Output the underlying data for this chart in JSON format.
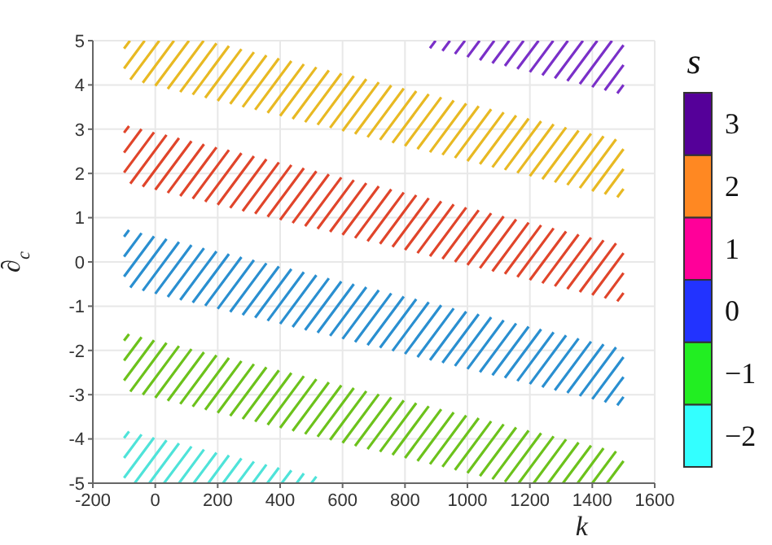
{
  "chart_data": {
    "type": "line",
    "xlabel": "k",
    "ylabel": "∂$_{c}$",
    "clabel": "s",
    "clim": [
      -2.5,
      3.5
    ],
    "cticks": [
      {
        "value": -2,
        "label": "−2"
      },
      {
        "value": -1,
        "label": "−1"
      },
      0,
      1,
      2,
      3
    ],
    "colors": [
      "#33ffff",
      "#22ee22",
      "#2233ff",
      "#ff0099",
      "#ff8822",
      "#550099"
    ],
    "xlim": [
      -200,
      1600
    ],
    "xticks": [
      -200,
      0,
      200,
      400,
      600,
      800,
      1000,
      1200,
      1400,
      1600
    ],
    "ylim": [
      -5,
      5
    ],
    "yticks": [
      -5,
      -4,
      -3,
      -2,
      -1,
      0,
      1,
      2,
      3,
      4,
      5
    ],
    "grid": true,
    "legend": false,
    "marker": "none",
    "line_style": "solid",
    "x": [
      -100,
      -84,
      null,
      -100,
      -44,
      null,
      -100,
      -4,
      null,
      -80,
      36,
      null,
      -40,
      76,
      null,
      0,
      116,
      null,
      40,
      156,
      null,
      80,
      196,
      null,
      120,
      236,
      null,
      160,
      276,
      null,
      200,
      316,
      null,
      240,
      356,
      null,
      280,
      396,
      null,
      320,
      436,
      null,
      360,
      476,
      null,
      400,
      516,
      null,
      440,
      556,
      null,
      480,
      596,
      null,
      520,
      636,
      null,
      560,
      676,
      null,
      600,
      716,
      null,
      640,
      756,
      null,
      680,
      796,
      null,
      720,
      836,
      null,
      760,
      876,
      null,
      800,
      916,
      null,
      840,
      956,
      null,
      880,
      996,
      null,
      920,
      1036,
      null,
      960,
      1076,
      null,
      1000,
      1116,
      null,
      1040,
      1156,
      null,
      1080,
      1196,
      null,
      1120,
      1236,
      null,
      1160,
      1276,
      null,
      1200,
      1316,
      null,
      1240,
      1356,
      null,
      1280,
      1396,
      null,
      1320,
      1436,
      null,
      1360,
      1476,
      null,
      1400,
      1500,
      null,
      1440,
      1500,
      null,
      1480,
      1500
    ],
    "series": [
      {
        "color": "#7a30c8",
        "x": [
          880,
          898,
          null,
          920,
          944,
          null,
          960,
          992,
          null,
          1000,
          1039,
          null,
          1040,
          1086,
          null,
          1080,
          1134,
          null,
          1120,
          1180,
          null,
          1160,
          1228,
          null,
          1200,
          1275,
          null,
          1240,
          1322,
          null,
          1280,
          1370,
          null,
          1320,
          1416,
          null,
          1360,
          1463,
          null,
          1400,
          1500,
          null,
          1440,
          1500,
          null,
          1480,
          1500
        ],
        "values": [
          4.83,
          5,
          null,
          4.77,
          5,
          null,
          4.7,
          5,
          null,
          4.63,
          5,
          null,
          4.56,
          5,
          null,
          4.49,
          5,
          null,
          4.43,
          5,
          null,
          4.36,
          5,
          null,
          4.29,
          5,
          null,
          4.22,
          5,
          null,
          4.15,
          5,
          null,
          4.09,
          5,
          null,
          4.02,
          5,
          null,
          3.95,
          4.9,
          null,
          3.88,
          4.45,
          null,
          3.81,
          4.0
        ]
      },
      {
        "color": "#e8b923",
        "x": [
          -100,
          -81,
          null,
          -100,
          -34,
          null,
          -80,
          13,
          null,
          -40,
          60,
          null,
          0,
          108,
          null,
          40,
          155,
          null,
          80,
          196,
          null,
          120,
          236,
          null,
          160,
          276,
          null,
          200,
          316,
          null,
          240,
          356,
          null,
          280,
          396,
          null,
          320,
          436,
          null,
          360,
          476,
          null,
          400,
          516,
          null,
          440,
          556,
          null,
          480,
          596,
          null,
          520,
          636,
          null,
          560,
          676,
          null,
          600,
          716,
          null,
          640,
          756,
          null,
          680,
          796,
          null,
          720,
          836,
          null,
          760,
          876,
          null,
          800,
          916,
          null,
          840,
          956,
          null,
          880,
          996,
          null,
          920,
          1036,
          null,
          960,
          1076,
          null,
          1000,
          1116,
          null,
          1040,
          1156,
          null,
          1080,
          1196,
          null,
          1120,
          1236,
          null,
          1160,
          1276,
          null,
          1200,
          1316,
          null,
          1240,
          1356,
          null,
          1280,
          1396,
          null,
          1320,
          1436,
          null,
          1360,
          1476,
          null,
          1400,
          1500,
          null,
          1440,
          1500,
          null,
          1480,
          1500
        ],
        "values": [
          4.82,
          5,
          null,
          4.37,
          5,
          null,
          4.12,
          5,
          null,
          4.05,
          5,
          null,
          3.98,
          5,
          null,
          3.91,
          5,
          null,
          3.84,
          4.94,
          null,
          3.78,
          4.88,
          null,
          3.71,
          4.81,
          null,
          3.64,
          4.74,
          null,
          3.57,
          4.67,
          null,
          3.5,
          4.6,
          null,
          3.44,
          4.54,
          null,
          3.37,
          4.47,
          null,
          3.3,
          4.4,
          null,
          3.23,
          4.33,
          null,
          3.16,
          4.26,
          null,
          3.1,
          4.2,
          null,
          3.03,
          4.13,
          null,
          2.96,
          4.06,
          null,
          2.89,
          3.99,
          null,
          2.82,
          3.92,
          null,
          2.76,
          3.86,
          null,
          2.69,
          3.79,
          null,
          2.62,
          3.72,
          null,
          2.55,
          3.65,
          null,
          2.48,
          3.58,
          null,
          2.42,
          3.52,
          null,
          2.35,
          3.45,
          null,
          2.28,
          3.38,
          null,
          2.21,
          3.31,
          null,
          2.14,
          3.24,
          null,
          2.08,
          3.18,
          null,
          2.01,
          3.11,
          null,
          1.94,
          3.04,
          null,
          1.87,
          2.97,
          null,
          1.8,
          2.9,
          null,
          1.74,
          2.84,
          null,
          1.67,
          2.77,
          null,
          1.6,
          2.55,
          null,
          1.53,
          2.1,
          null,
          1.46,
          1.65
        ]
      },
      {
        "color": "#e0452b",
        "values": [
          2.92,
          3.07,
          null,
          2.47,
          3.0,
          null,
          2.02,
          2.93,
          null,
          1.77,
          2.87,
          null,
          1.7,
          2.8,
          null,
          1.63,
          2.73,
          null,
          1.56,
          2.66,
          null,
          1.49,
          2.59,
          null,
          1.43,
          2.53,
          null,
          1.36,
          2.46,
          null,
          1.29,
          2.39,
          null,
          1.22,
          2.32,
          null,
          1.15,
          2.25,
          null,
          1.09,
          2.19,
          null,
          1.02,
          2.12,
          null,
          0.95,
          2.05,
          null,
          0.88,
          1.98,
          null,
          0.81,
          1.91,
          null,
          0.75,
          1.85,
          null,
          0.68,
          1.78,
          null,
          0.61,
          1.71,
          null,
          0.54,
          1.64,
          null,
          0.47,
          1.57,
          null,
          0.41,
          1.51,
          null,
          0.34,
          1.44,
          null,
          0.27,
          1.37,
          null,
          0.2,
          1.3,
          null,
          0.13,
          1.23,
          null,
          0.07,
          1.17,
          null,
          0.0,
          1.1,
          null,
          -0.07,
          1.03,
          null,
          -0.14,
          0.96,
          null,
          -0.21,
          0.89,
          null,
          -0.27,
          0.83,
          null,
          -0.34,
          0.76,
          null,
          -0.41,
          0.69,
          null,
          -0.48,
          0.62,
          null,
          -0.55,
          0.55,
          null,
          -0.61,
          0.49,
          null,
          -0.68,
          0.42,
          null,
          -0.75,
          0.2,
          null,
          -0.82,
          -0.25,
          null,
          -0.89,
          -0.7
        ]
      },
      {
        "color": "#2a8fd0",
        "values": [
          0.57,
          0.72,
          null,
          0.12,
          0.65,
          null,
          -0.33,
          0.58,
          null,
          -0.58,
          0.52,
          null,
          -0.65,
          0.45,
          null,
          -0.72,
          0.38,
          null,
          -0.79,
          0.31,
          null,
          -0.86,
          0.24,
          null,
          -0.92,
          0.18,
          null,
          -0.99,
          0.11,
          null,
          -1.06,
          0.04,
          null,
          -1.13,
          -0.03,
          null,
          -1.2,
          -0.1,
          null,
          -1.26,
          -0.16,
          null,
          -1.33,
          -0.23,
          null,
          -1.4,
          -0.3,
          null,
          -1.47,
          -0.37,
          null,
          -1.54,
          -0.44,
          null,
          -1.6,
          -0.5,
          null,
          -1.67,
          -0.57,
          null,
          -1.74,
          -0.64,
          null,
          -1.81,
          -0.71,
          null,
          -1.88,
          -0.78,
          null,
          -1.94,
          -0.84,
          null,
          -2.01,
          -0.91,
          null,
          -2.08,
          -0.98,
          null,
          -2.15,
          -1.05,
          null,
          -2.22,
          -1.12,
          null,
          -2.28,
          -1.18,
          null,
          -2.35,
          -1.25,
          null,
          -2.42,
          -1.32,
          null,
          -2.49,
          -1.39,
          null,
          -2.56,
          -1.46,
          null,
          -2.62,
          -1.52,
          null,
          -2.69,
          -1.59,
          null,
          -2.76,
          -1.66,
          null,
          -2.83,
          -1.73,
          null,
          -2.9,
          -1.8,
          null,
          -2.96,
          -1.86,
          null,
          -3.03,
          -1.93,
          null,
          -3.1,
          -2.15,
          null,
          -3.17,
          -2.6,
          null,
          -3.24,
          -3.05
        ]
      },
      {
        "color": "#6cc21c",
        "x": [
          -100,
          -84,
          null,
          -100,
          -44,
          null,
          -100,
          -4,
          null,
          -80,
          36,
          null,
          -40,
          76,
          null,
          0,
          116,
          null,
          40,
          156,
          null,
          80,
          196,
          null,
          120,
          236,
          null,
          160,
          276,
          null,
          200,
          316,
          null,
          240,
          356,
          null,
          280,
          396,
          null,
          320,
          436,
          null,
          360,
          476,
          null,
          400,
          516,
          null,
          440,
          556,
          null,
          480,
          596,
          null,
          520,
          636,
          null,
          560,
          676,
          null,
          600,
          716,
          null,
          640,
          756,
          null,
          680,
          796,
          null,
          720,
          836,
          null,
          760,
          876,
          null,
          800,
          916,
          null,
          840,
          956,
          null,
          880,
          996,
          null,
          920,
          1036,
          null,
          960,
          1076,
          null,
          1000,
          1116,
          null,
          1040,
          1156,
          null,
          1080,
          1196,
          null,
          1120,
          1236,
          null,
          1164,
          1276,
          null,
          1212,
          1316,
          null,
          1259,
          1356,
          null,
          1306,
          1396,
          null,
          1353,
          1436,
          null,
          1400,
          1476,
          null,
          1447,
          1500
        ],
        "values": [
          -1.78,
          -1.63,
          null,
          -2.23,
          -1.7,
          null,
          -2.68,
          -1.77,
          null,
          -2.93,
          -1.83,
          null,
          -3.0,
          -1.9,
          null,
          -3.07,
          -1.97,
          null,
          -3.14,
          -2.04,
          null,
          -3.21,
          -2.11,
          null,
          -3.27,
          -2.17,
          null,
          -3.34,
          -2.24,
          null,
          -3.41,
          -2.31,
          null,
          -3.48,
          -2.38,
          null,
          -3.55,
          -2.45,
          null,
          -3.61,
          -2.51,
          null,
          -3.68,
          -2.58,
          null,
          -3.75,
          -2.65,
          null,
          -3.82,
          -2.72,
          null,
          -3.89,
          -2.79,
          null,
          -3.95,
          -2.85,
          null,
          -4.02,
          -2.92,
          null,
          -4.09,
          -2.99,
          null,
          -4.16,
          -3.06,
          null,
          -4.23,
          -3.13,
          null,
          -4.29,
          -3.19,
          null,
          -4.36,
          -3.26,
          null,
          -4.43,
          -3.33,
          null,
          -4.5,
          -3.4,
          null,
          -4.57,
          -3.47,
          null,
          -4.63,
          -3.53,
          null,
          -4.7,
          -3.6,
          null,
          -4.77,
          -3.67,
          null,
          -4.84,
          -3.74,
          null,
          -4.91,
          -3.81,
          null,
          -4.97,
          -3.87,
          null,
          -5,
          -3.94,
          null,
          -5,
          -4.01,
          null,
          -5,
          -4.08,
          null,
          -5,
          -4.15,
          null,
          -5,
          -4.21,
          null,
          -5,
          -4.28,
          null,
          -5,
          -4.5
        ]
      },
      {
        "color": "#4fe3d9",
        "x": [
          -100,
          -84,
          null,
          -100,
          -44,
          null,
          -100,
          -4,
          null,
          -66,
          36,
          null,
          -19,
          76,
          null,
          28,
          116,
          null,
          76,
          156,
          null,
          123,
          196,
          null,
          170,
          236,
          null,
          217,
          276,
          null,
          264,
          316,
          null,
          312,
          356,
          null,
          359,
          396,
          null,
          405,
          436,
          null,
          453,
          476,
          null,
          500,
          516
        ],
        "values": [
          -3.98,
          -3.83,
          null,
          -4.43,
          -3.9,
          null,
          -4.88,
          -3.97,
          null,
          -5,
          -4.03,
          null,
          -5,
          -4.1,
          null,
          -5,
          -4.17,
          null,
          -5,
          -4.24,
          null,
          -5,
          -4.31,
          null,
          -5,
          -4.37,
          null,
          -5,
          -4.44,
          null,
          -5,
          -4.51,
          null,
          -5,
          -4.58,
          null,
          -5,
          -4.65,
          null,
          -5,
          -4.71,
          null,
          -5,
          -4.78,
          null,
          -5,
          -4.85
        ]
      }
    ]
  }
}
